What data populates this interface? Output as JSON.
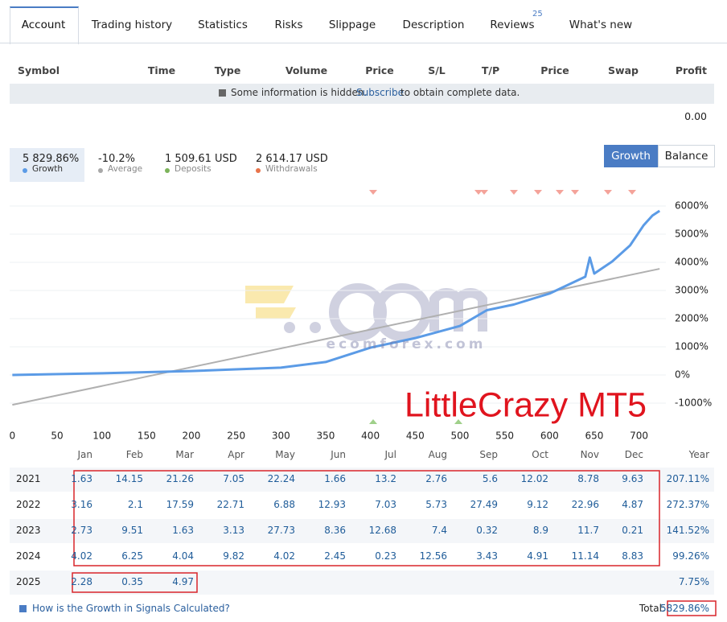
{
  "tabs": [
    "Account",
    "Trading history",
    "Statistics",
    "Risks",
    "Slippage",
    "Description",
    "Reviews",
    "What's new"
  ],
  "reviews_badge": "25",
  "positions_header": [
    "Symbol",
    "Time",
    "Type",
    "Volume",
    "Price",
    "S/L",
    "T/P",
    "Price",
    "Swap",
    "Profit"
  ],
  "notice": {
    "text": "Some information is hidden.",
    "link": "Subscribe",
    "rest": "to obtain complete data."
  },
  "profit_total": "0.00",
  "stats": [
    {
      "value": "5 829.86%",
      "label": "Growth"
    },
    {
      "value": "-10.2%",
      "label": "Average"
    },
    {
      "value": "1 509.61 USD",
      "label": "Deposits"
    },
    {
      "value": "2 614.17 USD",
      "label": "Withdrawals"
    }
  ],
  "toggle": [
    "Growth",
    "Balance"
  ],
  "chart_data": {
    "type": "line",
    "series": [
      {
        "name": "Growth",
        "color": "#5b9be6",
        "x": [
          0,
          100,
          200,
          300,
          350,
          400,
          450,
          500,
          530,
          560,
          600,
          640,
          645,
          650,
          670,
          690,
          705,
          715,
          723
        ],
        "values": [
          0,
          60,
          140,
          260,
          460,
          970,
          1310,
          1740,
          2300,
          2500,
          2890,
          3490,
          4170,
          3600,
          4030,
          4600,
          5310,
          5660,
          5830
        ]
      },
      {
        "name": "Average",
        "color": "#b0b0b0",
        "x": [
          0,
          723
        ],
        "values": [
          -1060,
          3770
        ]
      }
    ],
    "xlim": [
      -3,
      730
    ],
    "ylim": [
      -1800,
      6600
    ],
    "xticks": [
      0,
      50,
      100,
      150,
      200,
      250,
      300,
      350,
      400,
      450,
      500,
      550,
      600,
      650,
      700
    ],
    "yticks": [
      {
        "value": 6000,
        "label": "6000%"
      },
      {
        "value": 5000,
        "label": "5000%"
      },
      {
        "value": 4000,
        "label": "4000%"
      },
      {
        "value": 3000,
        "label": "3000%"
      },
      {
        "value": 2000,
        "label": "2000%"
      },
      {
        "value": 1000,
        "label": "1000%"
      },
      {
        "value": 0,
        "label": "0%"
      },
      {
        "value": -1000,
        "label": "-1000%"
      }
    ],
    "grid": true,
    "annotation": "LittleCrazy MT5",
    "watermark": "ecomforex.com"
  },
  "monthly": {
    "months": [
      "Jan",
      "Feb",
      "Mar",
      "Apr",
      "May",
      "Jun",
      "Jul",
      "Aug",
      "Sep",
      "Oct",
      "Nov",
      "Dec"
    ],
    "year_header": "Year",
    "rows": [
      {
        "year": "2021",
        "values": [
          1.63,
          14.15,
          21.26,
          7.05,
          22.24,
          1.66,
          13.2,
          2.76,
          5.6,
          12.02,
          8.78,
          9.63
        ],
        "total": "207.11%"
      },
      {
        "year": "2022",
        "values": [
          3.16,
          2.1,
          17.59,
          22.71,
          6.88,
          12.93,
          7.03,
          5.73,
          27.49,
          9.12,
          22.96,
          4.87
        ],
        "total": "272.37%"
      },
      {
        "year": "2023",
        "values": [
          2.73,
          9.51,
          1.63,
          3.13,
          27.73,
          8.36,
          12.68,
          7.4,
          0.32,
          8.9,
          11.7,
          0.21
        ],
        "total": "141.52%"
      },
      {
        "year": "2024",
        "values": [
          4.02,
          6.25,
          4.04,
          9.82,
          4.02,
          2.45,
          0.23,
          12.56,
          3.43,
          4.91,
          11.14,
          8.83
        ],
        "total": "99.26%"
      },
      {
        "year": "2025",
        "values": [
          2.28,
          0.35,
          4.97
        ],
        "total": "7.75%"
      }
    ]
  },
  "help_link": "How is the Growth in Signals Calculated?",
  "total_label": "Total:",
  "total_value": "5829.86%"
}
